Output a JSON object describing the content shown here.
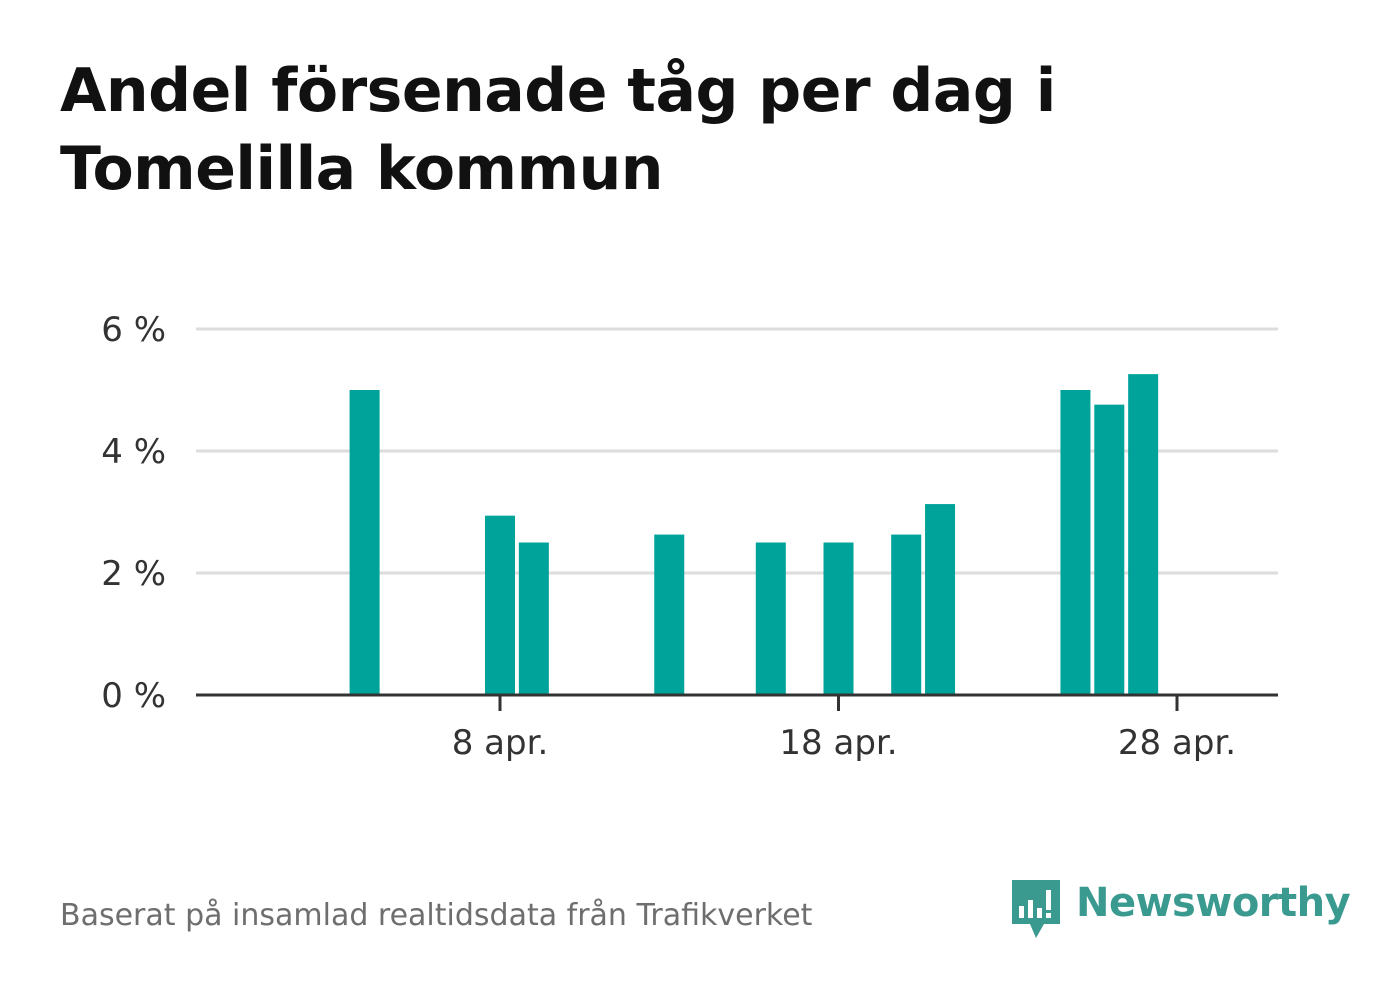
{
  "title": "Andel försenade tåg per dag i Tomelilla kommun",
  "source": "Baserat på insamlad realtidsdata från Trafikverket",
  "brand": {
    "name": "Newsworthy",
    "icon": "newsworthy-logo-icon",
    "color": "#3a9a90"
  },
  "colors": {
    "bar": "#00a39a",
    "grid": "#dddddd",
    "axis": "#333333"
  },
  "chart_data": {
    "type": "bar",
    "x_unit": "day of April",
    "x": [
      4,
      8,
      9,
      13,
      16,
      18,
      20,
      21,
      25,
      26,
      27
    ],
    "values": [
      5.0,
      2.94,
      2.5,
      2.63,
      2.5,
      2.5,
      2.63,
      3.13,
      5.0,
      4.76,
      5.26
    ],
    "ylim": [
      0,
      6
    ],
    "xlim": [
      "30 mar.",
      "30 apr."
    ],
    "yticks": [
      0,
      2,
      4,
      6
    ],
    "ytick_labels": [
      "0 %",
      "2 %",
      "4 %",
      "6 %"
    ],
    "xticks": [
      8,
      18,
      28
    ],
    "xtick_labels": [
      "8 apr.",
      "18 apr.",
      "28 apr."
    ],
    "grid": true,
    "legend": "none"
  }
}
